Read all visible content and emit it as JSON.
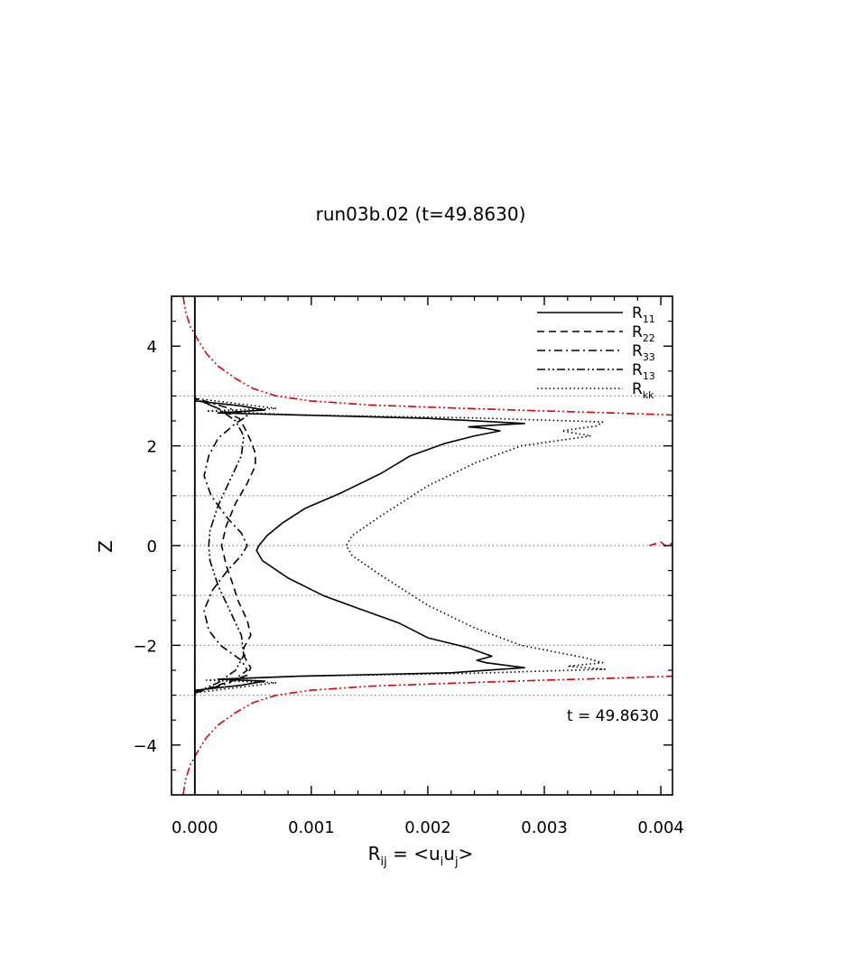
{
  "chart_data": {
    "type": "line",
    "title": "run03b.02 (t=49.8630)",
    "xlabel": "R",
    "xlabel_sub": "ij",
    "xlabel_rest": " = <u",
    "xlabel_sub_i": "i",
    "xlabel_mid": "u",
    "xlabel_sub_j": "j",
    "xlabel_end": ">",
    "ylabel": "Z",
    "annotation": "t = 49.8630",
    "xlim": [
      -0.0002,
      0.0041
    ],
    "ylim": [
      -5,
      5
    ],
    "x_ticks": [
      0.0,
      0.001,
      0.002,
      0.003,
      0.004
    ],
    "x_tick_labels": [
      "0.000",
      "0.001",
      "0.002",
      "0.003",
      "0.004"
    ],
    "y_ticks": [
      -4,
      -2,
      0,
      2,
      4
    ],
    "y_tick_labels": [
      "−4",
      "−2",
      "0",
      "2",
      "4"
    ],
    "dotted_hlines": [
      -3,
      -2,
      -1,
      0,
      1,
      2,
      3
    ],
    "legend_position": "top-right",
    "legend": [
      {
        "base": "R",
        "sub": "11",
        "style": "solid"
      },
      {
        "base": "R",
        "sub": "22",
        "style": "dashed"
      },
      {
        "base": "R",
        "sub": "33",
        "style": "dashdot"
      },
      {
        "base": "R",
        "sub": "13",
        "style": "dashdotdot"
      },
      {
        "base": "R",
        "sub": "kk",
        "style": "dotted"
      }
    ],
    "series": [
      {
        "name": "R11",
        "style": "solid",
        "color": "#000000",
        "points": [
          [
            0,
            -5
          ],
          [
            0,
            -3.0
          ],
          [
            1e-05,
            -2.9
          ],
          [
            0.0004,
            -2.8
          ],
          [
            0.0006,
            -2.72
          ],
          [
            0.0002,
            -2.68
          ],
          [
            0.0009,
            -2.62
          ],
          [
            0.0022,
            -2.55
          ],
          [
            0.00283,
            -2.45
          ],
          [
            0.0025,
            -2.35
          ],
          [
            0.00242,
            -2.3
          ],
          [
            0.00255,
            -2.22
          ],
          [
            0.00235,
            -2.05
          ],
          [
            0.002,
            -1.85
          ],
          [
            0.00175,
            -1.55
          ],
          [
            0.00145,
            -1.3
          ],
          [
            0.0011,
            -1.0
          ],
          [
            0.0008,
            -0.65
          ],
          [
            0.00058,
            -0.3
          ],
          [
            0.00053,
            -0.1
          ],
          [
            0.00055,
            0.0
          ],
          [
            0.00062,
            0.2
          ],
          [
            0.00075,
            0.45
          ],
          [
            0.00095,
            0.75
          ],
          [
            0.00125,
            1.05
          ],
          [
            0.0016,
            1.45
          ],
          [
            0.00185,
            1.8
          ],
          [
            0.00215,
            2.05
          ],
          [
            0.0024,
            2.2
          ],
          [
            0.00262,
            2.3
          ],
          [
            0.0025,
            2.35
          ],
          [
            0.00235,
            2.38
          ],
          [
            0.0026,
            2.42
          ],
          [
            0.00283,
            2.45
          ],
          [
            0.002,
            2.55
          ],
          [
            0.0009,
            2.62
          ],
          [
            0.0002,
            2.66
          ],
          [
            0.0006,
            2.72
          ],
          [
            0.0004,
            2.8
          ],
          [
            1e-05,
            2.9
          ],
          [
            0,
            3.0
          ],
          [
            0,
            5
          ]
        ]
      },
      {
        "name": "R22",
        "style": "dashed",
        "color": "#000000",
        "points": [
          [
            1e-05,
            -2.95
          ],
          [
            0.0002,
            -2.8
          ],
          [
            0.00045,
            -2.6
          ],
          [
            0.00048,
            -2.45
          ],
          [
            0.00043,
            -2.25
          ],
          [
            0.00042,
            -2.05
          ],
          [
            0.00048,
            -1.8
          ],
          [
            0.00045,
            -1.5
          ],
          [
            0.00037,
            -1.1
          ],
          [
            0.00033,
            -0.8
          ],
          [
            0.00027,
            -0.4
          ],
          [
            0.00023,
            0.0
          ],
          [
            0.00027,
            0.4
          ],
          [
            0.00035,
            0.85
          ],
          [
            0.00045,
            1.25
          ],
          [
            0.00052,
            1.6
          ],
          [
            0.00052,
            1.85
          ],
          [
            0.00048,
            2.1
          ],
          [
            0.00043,
            2.35
          ],
          [
            0.00038,
            2.55
          ],
          [
            0.0002,
            2.75
          ],
          [
            1e-05,
            2.95
          ]
        ]
      },
      {
        "name": "R33",
        "style": "dashdot",
        "color": "#000000",
        "points": [
          [
            1e-05,
            -2.95
          ],
          [
            0.0003,
            -2.75
          ],
          [
            0.00045,
            -2.5
          ],
          [
            0.0004,
            -2.3
          ],
          [
            0.00022,
            -2.0
          ],
          [
            0.00012,
            -1.7
          ],
          [
            8e-05,
            -1.3
          ],
          [
            0.00015,
            -0.9
          ],
          [
            0.00028,
            -0.5
          ],
          [
            0.0004,
            -0.2
          ],
          [
            0.00045,
            0.0
          ],
          [
            0.0004,
            0.25
          ],
          [
            0.00028,
            0.55
          ],
          [
            0.00014,
            1.0
          ],
          [
            8e-05,
            1.4
          ],
          [
            0.00012,
            1.8
          ],
          [
            0.0002,
            2.15
          ],
          [
            0.00035,
            2.45
          ],
          [
            0.00045,
            2.6
          ],
          [
            0.0003,
            2.75
          ],
          [
            1e-05,
            2.95
          ]
        ]
      },
      {
        "name": "R13",
        "style": "dashdotdot",
        "color": "#000000",
        "points": [
          [
            0,
            -2.95
          ],
          [
            0.0002,
            -2.75
          ],
          [
            0.00035,
            -2.5
          ],
          [
            0.00042,
            -2.2
          ],
          [
            0.0004,
            -1.8
          ],
          [
            0.0003,
            -1.3
          ],
          [
            0.0002,
            -0.8
          ],
          [
            0.00013,
            -0.3
          ],
          [
            0.00012,
            0.0
          ],
          [
            0.00013,
            0.3
          ],
          [
            0.0002,
            0.8
          ],
          [
            0.0003,
            1.3
          ],
          [
            0.0004,
            1.8
          ],
          [
            0.00042,
            2.2
          ],
          [
            0.00035,
            2.5
          ],
          [
            0.0002,
            2.75
          ],
          [
            0,
            2.95
          ]
        ]
      },
      {
        "name": "Rkk",
        "style": "dotted",
        "color": "#000000",
        "points": [
          [
            1e-05,
            -2.95
          ],
          [
            0.0007,
            -2.75
          ],
          [
            0.0001,
            -2.7
          ],
          [
            0.0009,
            -2.62
          ],
          [
            0.0024,
            -2.56
          ],
          [
            0.00352,
            -2.48
          ],
          [
            0.0032,
            -2.42
          ],
          [
            0.0035,
            -2.35
          ],
          [
            0.00335,
            -2.25
          ],
          [
            0.0028,
            -2.0
          ],
          [
            0.0024,
            -1.65
          ],
          [
            0.002,
            -1.2
          ],
          [
            0.0016,
            -0.6
          ],
          [
            0.00135,
            -0.2
          ],
          [
            0.0013,
            0.0
          ],
          [
            0.00135,
            0.2
          ],
          [
            0.0016,
            0.6
          ],
          [
            0.002,
            1.2
          ],
          [
            0.0024,
            1.65
          ],
          [
            0.0028,
            2.0
          ],
          [
            0.0034,
            2.2
          ],
          [
            0.00315,
            2.3
          ],
          [
            0.00345,
            2.4
          ],
          [
            0.0035,
            2.48
          ],
          [
            0.0024,
            2.56
          ],
          [
            0.0009,
            2.62
          ],
          [
            0.0001,
            2.7
          ],
          [
            0.0007,
            2.75
          ],
          [
            1e-05,
            2.95
          ]
        ]
      },
      {
        "name": "red-upper",
        "style": "dashdotdot",
        "color": "#dd0000",
        "points": [
          [
            -0.0001,
            5.0
          ],
          [
            -8e-05,
            4.7
          ],
          [
            -4e-05,
            4.4
          ],
          [
            2e-05,
            4.15
          ],
          [
            0.0001,
            3.85
          ],
          [
            0.0002,
            3.6
          ],
          [
            0.00035,
            3.35
          ],
          [
            0.0005,
            3.15
          ],
          [
            0.0007,
            3.0
          ],
          [
            0.001,
            2.9
          ],
          [
            0.0015,
            2.82
          ],
          [
            0.0022,
            2.76
          ],
          [
            0.003,
            2.7
          ],
          [
            0.0036,
            2.66
          ],
          [
            0.0041,
            2.62
          ]
        ]
      },
      {
        "name": "red-lower",
        "style": "dashdotdot",
        "color": "#dd0000",
        "points": [
          [
            -0.0001,
            -5.0
          ],
          [
            -8e-05,
            -4.7
          ],
          [
            -4e-05,
            -4.4
          ],
          [
            2e-05,
            -4.15
          ],
          [
            0.0001,
            -3.85
          ],
          [
            0.0002,
            -3.6
          ],
          [
            0.00035,
            -3.35
          ],
          [
            0.0005,
            -3.15
          ],
          [
            0.0007,
            -3.0
          ],
          [
            0.001,
            -2.9
          ],
          [
            0.0015,
            -2.82
          ],
          [
            0.0022,
            -2.76
          ],
          [
            0.003,
            -2.7
          ],
          [
            0.0036,
            -2.66
          ],
          [
            0.0041,
            -2.62
          ]
        ]
      },
      {
        "name": "red-center",
        "style": "dashed",
        "color": "#dd0000",
        "points": [
          [
            0.0,
            -4.9
          ],
          [
            0.0,
            4.9
          ]
        ]
      },
      {
        "name": "red-right-blip",
        "style": "dashed",
        "color": "#dd0000",
        "points": [
          [
            0.0039,
            0.0
          ],
          [
            0.004,
            0.07
          ],
          [
            0.00405,
            -0.02
          ],
          [
            0.0041,
            0.05
          ]
        ]
      }
    ]
  }
}
